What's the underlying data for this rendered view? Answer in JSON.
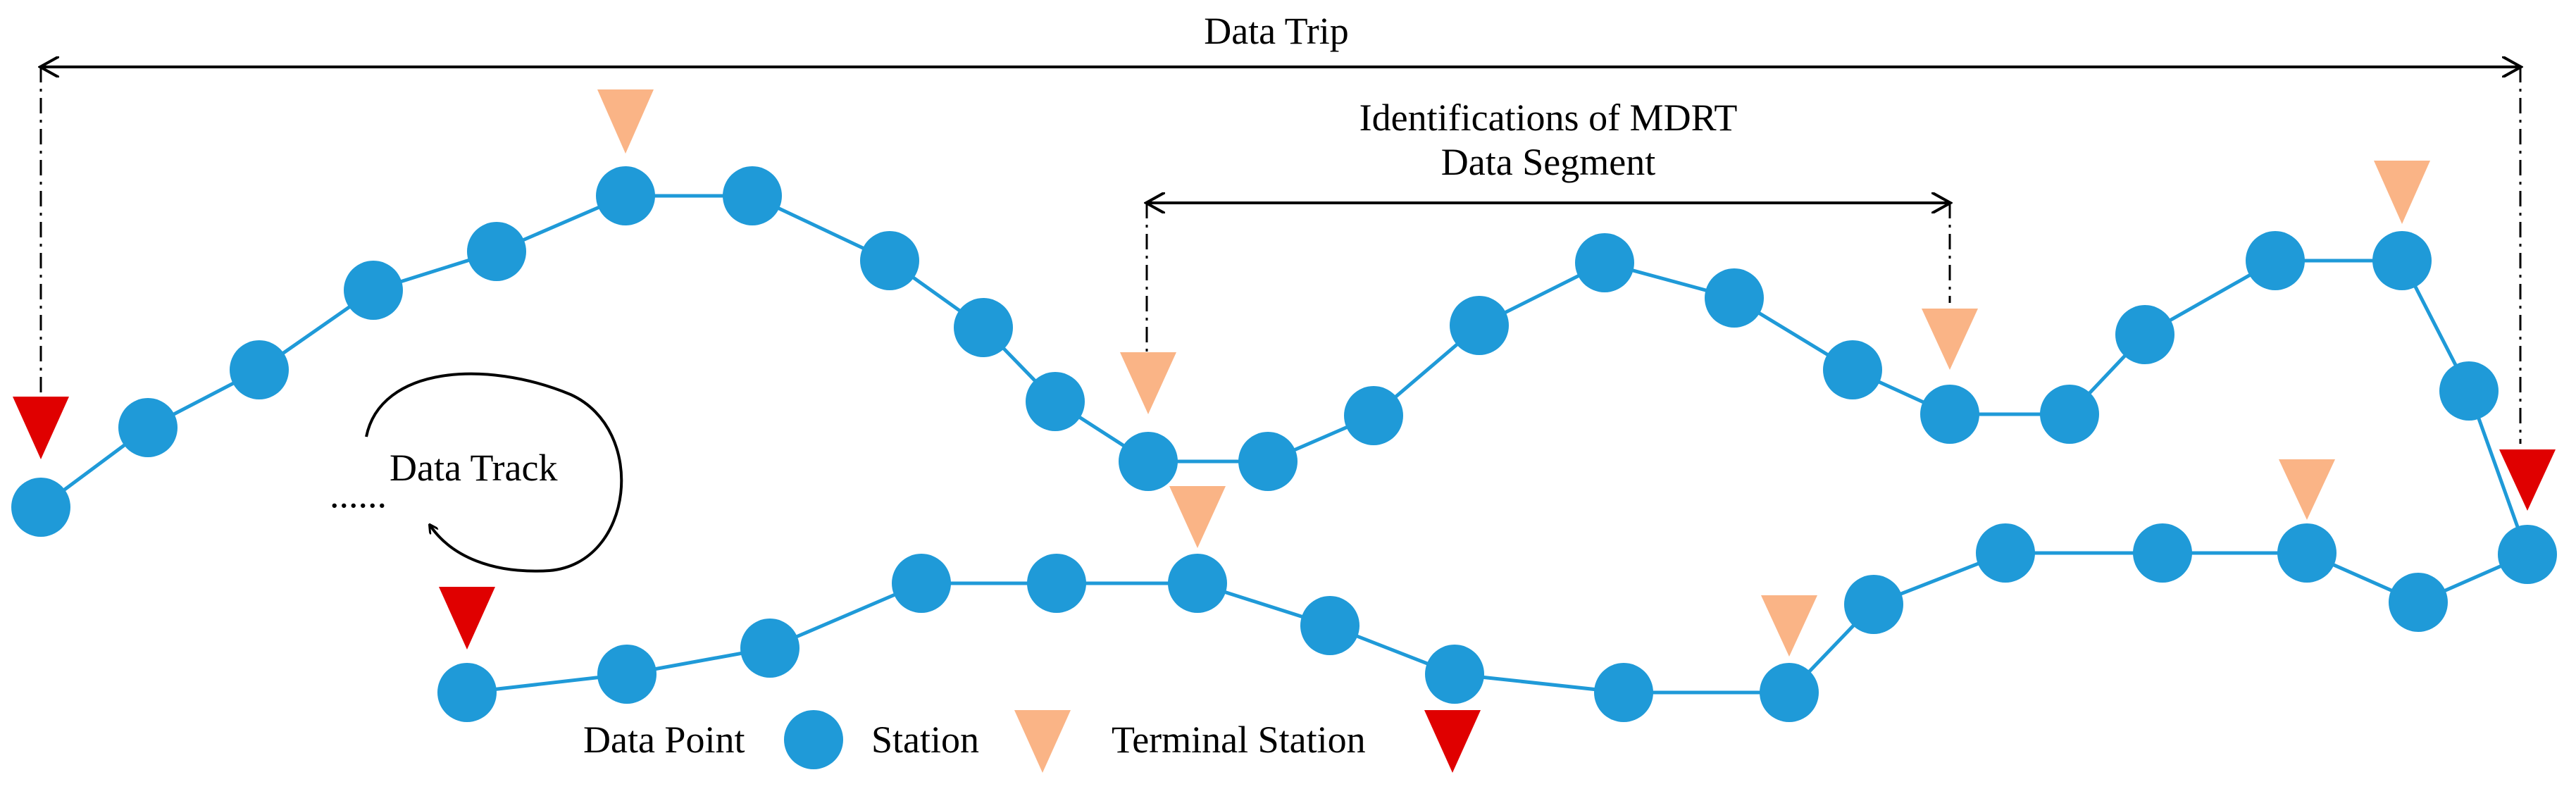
{
  "labels": {
    "data_trip": "Data Trip",
    "segment_line1": "Identifications of MDRT",
    "segment_line2": "Data Segment",
    "data_track": "Data Track",
    "ellipsis": "......"
  },
  "legend": {
    "data_point": "Data Point",
    "station": "Station",
    "terminal_station": "Terminal Station"
  },
  "colors": {
    "data_point": "#1f9ad8",
    "station": "#fab486",
    "terminal_station": "#e00000"
  }
}
